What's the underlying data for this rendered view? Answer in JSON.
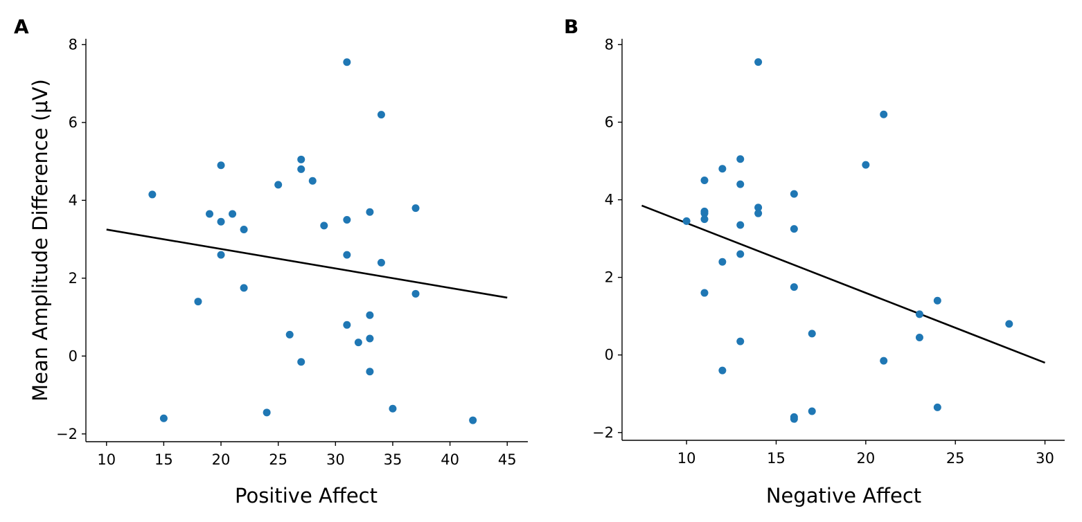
{
  "chart_data": [
    {
      "type": "scatter",
      "panel_label": "A",
      "title": "",
      "xlabel": "Positive Affect",
      "ylabel": "Mean Amplitude Difference (μV)",
      "xlim": [
        8.2,
        46.8
      ],
      "ylim": [
        -2.2,
        8.15
      ],
      "xticks": [
        10,
        15,
        20,
        25,
        30,
        35,
        40,
        45
      ],
      "xtick_labels": [
        "10",
        "15",
        "20",
        "25",
        "30",
        "35",
        "40",
        "45"
      ],
      "yticks": [
        -2,
        0,
        2,
        4,
        6,
        8
      ],
      "ytick_labels": [
        "−2",
        "0",
        "2",
        "4",
        "6",
        "8"
      ],
      "marker_color": "#1f77b4",
      "line_color": "#000000",
      "points": [
        {
          "x": 14,
          "y": 4.15
        },
        {
          "x": 15,
          "y": -1.6
        },
        {
          "x": 18,
          "y": 1.4
        },
        {
          "x": 19,
          "y": 3.65
        },
        {
          "x": 20,
          "y": 4.9
        },
        {
          "x": 20,
          "y": 3.45
        },
        {
          "x": 20,
          "y": 2.6
        },
        {
          "x": 21,
          "y": 3.65
        },
        {
          "x": 22,
          "y": 3.25
        },
        {
          "x": 22,
          "y": 1.75
        },
        {
          "x": 24,
          "y": -1.45
        },
        {
          "x": 25,
          "y": 4.4
        },
        {
          "x": 26,
          "y": 0.55
        },
        {
          "x": 27,
          "y": 5.05
        },
        {
          "x": 27,
          "y": 4.8
        },
        {
          "x": 27,
          "y": -0.15
        },
        {
          "x": 28,
          "y": 4.5
        },
        {
          "x": 29,
          "y": 3.35
        },
        {
          "x": 31,
          "y": 7.55
        },
        {
          "x": 31,
          "y": 3.5
        },
        {
          "x": 31,
          "y": 2.6
        },
        {
          "x": 31,
          "y": 0.8
        },
        {
          "x": 32,
          "y": 0.35
        },
        {
          "x": 33,
          "y": 3.7
        },
        {
          "x": 33,
          "y": 1.05
        },
        {
          "x": 33,
          "y": 0.45
        },
        {
          "x": 33,
          "y": -0.4
        },
        {
          "x": 34,
          "y": 6.2
        },
        {
          "x": 34,
          "y": 2.4
        },
        {
          "x": 35,
          "y": -1.35
        },
        {
          "x": 37,
          "y": 3.8
        },
        {
          "x": 37,
          "y": 1.6
        },
        {
          "x": 42,
          "y": -1.65
        }
      ],
      "fit_line": {
        "x": [
          10,
          45
        ],
        "y": [
          3.25,
          1.5
        ]
      }
    },
    {
      "type": "scatter",
      "panel_label": "B",
      "title": "",
      "xlabel": "Negative Affect",
      "ylabel": "",
      "xlim": [
        6.4,
        31.1
      ],
      "ylim": [
        -2.2,
        8.15
      ],
      "xticks": [
        10,
        15,
        20,
        25,
        30
      ],
      "xtick_labels": [
        "10",
        "15",
        "20",
        "25",
        "30"
      ],
      "yticks": [
        -2,
        0,
        2,
        4,
        6,
        8
      ],
      "ytick_labels": [
        "−2",
        "0",
        "2",
        "4",
        "6",
        "8"
      ],
      "marker_color": "#1f77b4",
      "line_color": "#000000",
      "points": [
        {
          "x": 10,
          "y": 3.45
        },
        {
          "x": 11,
          "y": 4.5
        },
        {
          "x": 11,
          "y": 3.7
        },
        {
          "x": 11,
          "y": 3.65
        },
        {
          "x": 11,
          "y": 3.5
        },
        {
          "x": 11,
          "y": 1.6
        },
        {
          "x": 12,
          "y": 4.8
        },
        {
          "x": 12,
          "y": 2.4
        },
        {
          "x": 12,
          "y": -0.4
        },
        {
          "x": 13,
          "y": 5.05
        },
        {
          "x": 13,
          "y": 4.4
        },
        {
          "x": 13,
          "y": 3.35
        },
        {
          "x": 13,
          "y": 2.6
        },
        {
          "x": 13,
          "y": 0.35
        },
        {
          "x": 14,
          "y": 7.55
        },
        {
          "x": 14,
          "y": 3.8
        },
        {
          "x": 14,
          "y": 3.65
        },
        {
          "x": 16,
          "y": 4.15
        },
        {
          "x": 16,
          "y": 3.25
        },
        {
          "x": 16,
          "y": 1.75
        },
        {
          "x": 16,
          "y": -1.6
        },
        {
          "x": 16,
          "y": -1.65
        },
        {
          "x": 17,
          "y": 0.55
        },
        {
          "x": 17,
          "y": -1.45
        },
        {
          "x": 20,
          "y": 4.9
        },
        {
          "x": 21,
          "y": 6.2
        },
        {
          "x": 21,
          "y": -0.15
        },
        {
          "x": 23,
          "y": 1.05
        },
        {
          "x": 23,
          "y": 0.45
        },
        {
          "x": 24,
          "y": 1.4
        },
        {
          "x": 24,
          "y": -1.35
        },
        {
          "x": 28,
          "y": 0.8
        }
      ],
      "fit_line": {
        "x": [
          7.5,
          30
        ],
        "y": [
          3.85,
          -0.2
        ]
      }
    }
  ]
}
